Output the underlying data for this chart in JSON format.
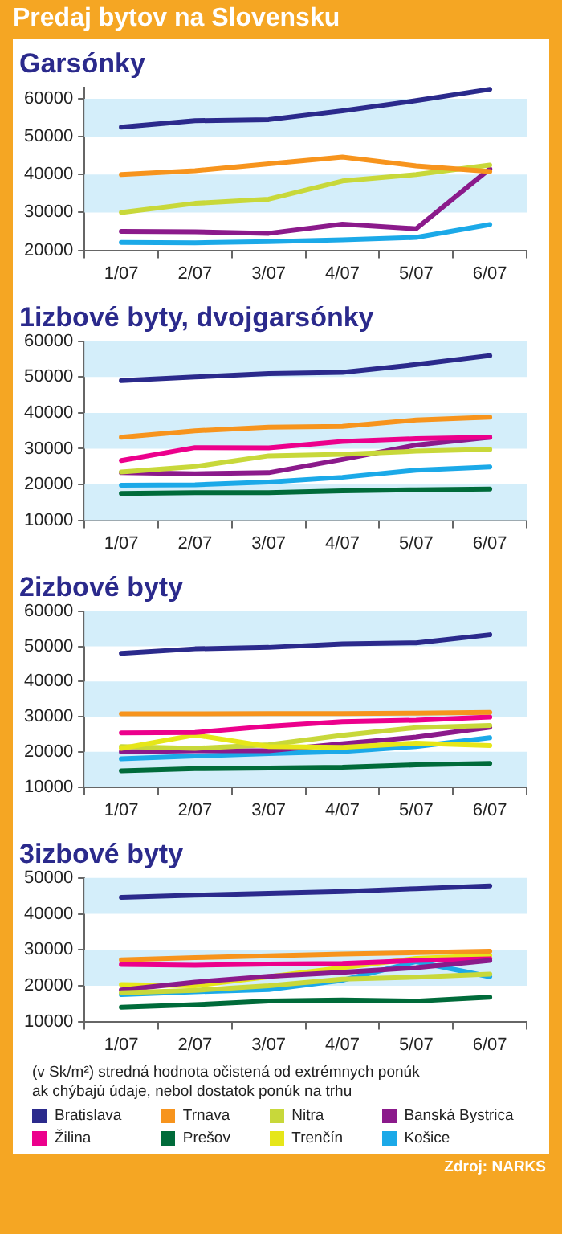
{
  "chart_data": [
    {
      "type": "line",
      "title": "Predaj bytov na Slovensku",
      "subtitle": "Garsónky",
      "categories": [
        "1/07",
        "2/07",
        "3/07",
        "4/07",
        "5/07",
        "6/07"
      ],
      "ylim": [
        20000,
        63000
      ],
      "yticks": [
        20000,
        30000,
        40000,
        50000,
        60000
      ],
      "grid": false,
      "bands": [
        {
          "axis": "y",
          "from": 30000,
          "to": 40000,
          "color": "#d4eefa"
        },
        {
          "axis": "y",
          "from": 50000,
          "to": 60000,
          "color": "#d4eefa"
        }
      ],
      "series": [
        {
          "color": "#2b2a8c",
          "values": [
            52500,
            54200,
            54500,
            56800,
            59500,
            62500
          ]
        },
        {
          "color": "#f7941d",
          "values": [
            40000,
            41000,
            42800,
            44600,
            42300,
            40800
          ]
        },
        {
          "color": "#c8d83a",
          "values": [
            30000,
            32400,
            33500,
            38300,
            40000,
            42500
          ]
        },
        {
          "color": "#8b1a8b",
          "values": [
            25000,
            24900,
            24500,
            26900,
            25700,
            41500
          ]
        },
        {
          "color": "#1ba9e8",
          "values": [
            22100,
            22000,
            22300,
            22800,
            23400,
            26800
          ]
        }
      ]
    },
    {
      "type": "line",
      "title": "1izbové byty, dvojgarsónky",
      "categories": [
        "1/07",
        "2/07",
        "3/07",
        "4/07",
        "5/07",
        "6/07"
      ],
      "ylim": [
        10000,
        60000
      ],
      "yticks": [
        10000,
        20000,
        30000,
        40000,
        50000,
        60000
      ],
      "grid": false,
      "bands": [
        {
          "axis": "y",
          "from": 10000,
          "to": 20000,
          "color": "#d4eefa"
        },
        {
          "axis": "y",
          "from": 30000,
          "to": 40000,
          "color": "#d4eefa"
        },
        {
          "axis": "y",
          "from": 50000,
          "to": 60000,
          "color": "#d4eefa"
        }
      ],
      "series": [
        {
          "color": "#2b2a8c",
          "values": [
            49000,
            50000,
            51000,
            51300,
            53500,
            56000
          ]
        },
        {
          "color": "#f7941d",
          "values": [
            33200,
            35000,
            36000,
            36200,
            38000,
            38800
          ]
        },
        {
          "color": "#ec008c",
          "values": [
            26700,
            30300,
            30200,
            32000,
            32800,
            33200
          ]
        },
        {
          "color": "#c8d83a",
          "values": [
            23500,
            25000,
            28000,
            28400,
            29300,
            29800
          ]
        },
        {
          "color": "#8b1a8b",
          "values": [
            23300,
            23000,
            23300,
            27000,
            31000,
            33200
          ]
        },
        {
          "color": "#1ba9e8",
          "values": [
            19800,
            19900,
            20700,
            22000,
            24000,
            24900
          ]
        },
        {
          "color": "#006b3a",
          "values": [
            17500,
            17700,
            17700,
            18200,
            18500,
            18700
          ]
        }
      ]
    },
    {
      "type": "line",
      "title": "2izbové byty",
      "categories": [
        "1/07",
        "2/07",
        "3/07",
        "4/07",
        "5/07",
        "6/07"
      ],
      "ylim": [
        10000,
        60000
      ],
      "yticks": [
        10000,
        20000,
        30000,
        40000,
        50000,
        60000
      ],
      "grid": false,
      "bands": [
        {
          "axis": "y",
          "from": 10000,
          "to": 20000,
          "color": "#d4eefa"
        },
        {
          "axis": "y",
          "from": 30000,
          "to": 40000,
          "color": "#d4eefa"
        },
        {
          "axis": "y",
          "from": 50000,
          "to": 60000,
          "color": "#d4eefa"
        }
      ],
      "series": [
        {
          "color": "#2b2a8c",
          "values": [
            48000,
            49300,
            49700,
            50700,
            51000,
            53300
          ]
        },
        {
          "color": "#f7941d",
          "values": [
            30800,
            30800,
            30900,
            30900,
            31000,
            31200
          ]
        },
        {
          "color": "#ec008c",
          "values": [
            25400,
            25500,
            27300,
            28600,
            29000,
            29900
          ]
        },
        {
          "color": "#e6e619",
          "values": [
            21000,
            24800,
            21500,
            21300,
            22500,
            21800
          ]
        },
        {
          "color": "#c8d83a",
          "values": [
            21500,
            21000,
            22000,
            24700,
            26900,
            27500
          ]
        },
        {
          "color": "#8b1a8b",
          "values": [
            20000,
            20300,
            20300,
            22300,
            24200,
            27000
          ]
        },
        {
          "color": "#1ba9e8",
          "values": [
            18000,
            18800,
            19500,
            20100,
            21500,
            24000
          ]
        },
        {
          "color": "#006b3a",
          "values": [
            14600,
            15200,
            15400,
            15600,
            16300,
            16700
          ]
        }
      ]
    },
    {
      "type": "line",
      "title": "3izbové byty",
      "categories": [
        "1/07",
        "2/07",
        "3/07",
        "4/07",
        "5/07",
        "6/07"
      ],
      "ylim": [
        10000,
        50000
      ],
      "yticks": [
        10000,
        20000,
        30000,
        40000,
        50000
      ],
      "grid": false,
      "legend": "bottom",
      "bands": [
        {
          "axis": "y",
          "from": 20000,
          "to": 30000,
          "color": "#d4eefa"
        },
        {
          "axis": "y",
          "from": 40000,
          "to": 50000,
          "color": "#d4eefa"
        }
      ],
      "annotations": [
        "(v Sk/m²)  stredná hodnota očistená od extrémnych ponúk",
        "ak chýbajú údaje, nebol dostatok ponúk na trhu",
        "Zdroj: NARKS"
      ],
      "series": [
        {
          "name": "Bratislava",
          "color": "#2b2a8c",
          "values": [
            44600,
            45200,
            45700,
            46200,
            47000,
            47800
          ]
        },
        {
          "name": "Trnava",
          "color": "#f7941d",
          "values": [
            27200,
            27800,
            28300,
            28800,
            29200,
            29600
          ]
        },
        {
          "name": "Nitra",
          "color": "#c8d83a",
          "values": [
            18000,
            18700,
            20000,
            21800,
            22400,
            23200
          ]
        },
        {
          "name": "Banská Bystrica",
          "color": "#8b1a8b",
          "values": [
            18800,
            21000,
            22600,
            23700,
            25000,
            27000
          ]
        },
        {
          "name": "Žilina",
          "color": "#ec008c",
          "values": [
            25900,
            25700,
            26000,
            26200,
            27000,
            27500
          ]
        },
        {
          "name": "Prešov",
          "color": "#006b3a",
          "values": [
            14000,
            14700,
            15700,
            16000,
            15700,
            16800
          ]
        },
        {
          "name": "Trenčín",
          "color": "#e6e619",
          "values": [
            20300,
            20000,
            22500,
            25000,
            27600,
            28400
          ]
        },
        {
          "name": "Košice",
          "color": "#1ba9e8",
          "values": [
            17500,
            18300,
            18900,
            21500,
            26700,
            22500
          ]
        }
      ]
    }
  ]
}
